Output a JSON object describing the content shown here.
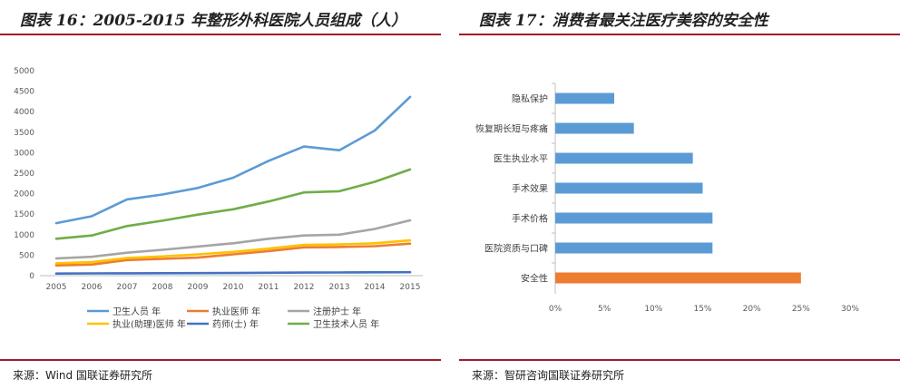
{
  "left": {
    "title": "图表 16：2005-2015 年整形外科医院人员组成（人）",
    "source": "来源：Wind 国联证券研究所",
    "colors": {
      "s1": "#5b9bd5",
      "s2": "#ed7d31",
      "s3": "#a5a5a5",
      "s4": "#ffc000",
      "s5": "#4472c4",
      "s6": "#70ad47"
    },
    "chart_data": {
      "type": "line",
      "x": [
        "2005",
        "2006",
        "2007",
        "2008",
        "2009",
        "2010",
        "2011",
        "2012",
        "2013",
        "2014",
        "2015"
      ],
      "ylim": [
        0,
        5000
      ],
      "yticks": [
        "0",
        "500",
        "1000",
        "1500",
        "2000",
        "2500",
        "3000",
        "3500",
        "4000",
        "4500",
        "5000"
      ],
      "legend_position": "bottom",
      "series": [
        {
          "name": "卫生人员 年",
          "values": [
            1280,
            1450,
            1860,
            1980,
            2140,
            2390,
            2800,
            3150,
            3060,
            3540,
            4360
          ]
        },
        {
          "name": "执业医师 年",
          "values": [
            250,
            270,
            380,
            410,
            440,
            520,
            600,
            690,
            700,
            720,
            780
          ]
        },
        {
          "name": "注册护士 年",
          "values": [
            420,
            460,
            560,
            630,
            710,
            790,
            900,
            980,
            1000,
            1140,
            1350
          ]
        },
        {
          "name": "执业(助理)医师 年",
          "values": [
            300,
            330,
            430,
            470,
            520,
            580,
            660,
            750,
            760,
            790,
            860
          ]
        },
        {
          "name": "药师(士) 年",
          "values": [
            50,
            55,
            58,
            60,
            62,
            65,
            70,
            75,
            78,
            82,
            85
          ]
        },
        {
          "name": "卫生技术人员 年",
          "values": [
            900,
            980,
            1210,
            1340,
            1490,
            1620,
            1810,
            2030,
            2060,
            2290,
            2590
          ]
        }
      ]
    }
  },
  "right": {
    "title": "图表 17：消费者最关注医疗美容的安全性",
    "source": "来源：智研咨询国联证券研究所",
    "bar_color": "#5b9bd5",
    "highlight_color": "#ed7d31",
    "chart_data": {
      "type": "bar",
      "orientation": "horizontal",
      "categories": [
        "隐私保护",
        "恢复期长短与疼痛",
        "医生执业水平",
        "手术效果",
        "手术价格",
        "医院资质与口碑",
        "安全性"
      ],
      "values": [
        6,
        8,
        14,
        15,
        16,
        16,
        25
      ],
      "xlim": [
        0,
        30
      ],
      "xticks": [
        "0%",
        "5%",
        "10%",
        "15%",
        "20%",
        "25%",
        "30%"
      ],
      "highlight": "安全性"
    }
  }
}
